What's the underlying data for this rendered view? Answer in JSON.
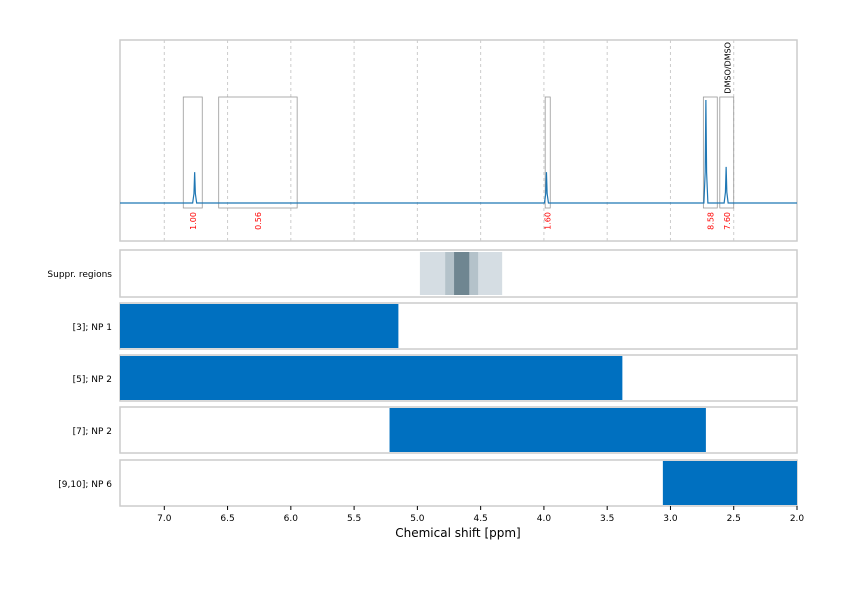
{
  "chart_data": {
    "type": "line",
    "xlabel": "Chemical shift [ppm]",
    "xlim": [
      7.35,
      2.0
    ],
    "x_ticks": [
      "7.0",
      "6.5",
      "6.0",
      "5.5",
      "5.0",
      "4.5",
      "4.0",
      "3.5",
      "3.0",
      "2.5",
      "2.0"
    ],
    "grid": true,
    "colors": {
      "spectrum": "#1f77b4",
      "bar": "#0070c0",
      "integral_label": "#ff0000",
      "box": "#999999",
      "suppr_light": "#d5dde3",
      "suppr_mid": "#b4c2ca",
      "suppr_dark": "#6f8691"
    },
    "spectrum": {
      "peaks": [
        {
          "ppm": 6.76,
          "height": 0.3
        },
        {
          "ppm": 3.98,
          "height": 0.3
        },
        {
          "ppm": 2.72,
          "height": 1.0
        },
        {
          "ppm": 2.56,
          "height": 0.35
        }
      ]
    },
    "integrals": [
      {
        "from": 6.85,
        "to": 6.7,
        "label": "1.00"
      },
      {
        "from": 6.57,
        "to": 5.95,
        "label": "0.56"
      },
      {
        "from": 3.99,
        "to": 3.95,
        "label": "1.60"
      },
      {
        "from": 2.74,
        "to": 2.63,
        "label": "8.58"
      },
      {
        "from": 2.61,
        "to": 2.5,
        "label": "7.60"
      }
    ],
    "annotations": [
      {
        "ppm": 2.55,
        "text": "DMSO/DMSO"
      }
    ],
    "suppression": {
      "label": "Suppr. regions",
      "regions": [
        {
          "from": 4.98,
          "to": 4.33,
          "level": "light"
        },
        {
          "from": 4.78,
          "to": 4.52,
          "level": "mid"
        },
        {
          "from": 4.71,
          "to": 4.59,
          "level": "dark"
        }
      ]
    },
    "rows": [
      {
        "label": "[3]; NP 1",
        "from": 7.35,
        "to": 5.15
      },
      {
        "label": "[5]; NP 2",
        "from": 7.35,
        "to": 3.38
      },
      {
        "label": "[7]; NP 2",
        "from": 5.22,
        "to": 2.72
      },
      {
        "label": "[9,10]; NP 6",
        "from": 3.06,
        "to": 2.0
      }
    ]
  }
}
